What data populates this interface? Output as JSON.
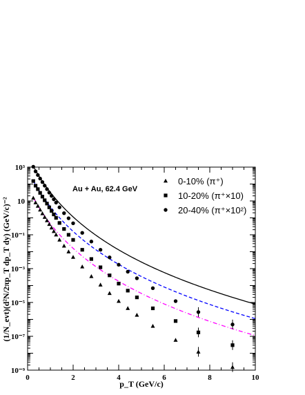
{
  "chart_data": {
    "type": "scatter",
    "annotation": "Au + Au, 62.4 GeV",
    "xlabel": "p_T (GeV/c)",
    "ylabel": "(1/N_evt)(d²N/2πp_T dp_T dy) (GeV/c)⁻²",
    "xlim": [
      0,
      10
    ],
    "ylim": [
      1e-09,
      1000
    ],
    "y_scale": "log",
    "x_ticks": [
      "0",
      "2",
      "4",
      "6",
      "8",
      "10"
    ],
    "y_ticks": [
      "10⁻⁹",
      "10⁻⁷",
      "10⁻⁵",
      "10⁻³",
      "10⁻¹",
      "10",
      "10³"
    ],
    "grid": false,
    "legend_position": "top-right",
    "legend": [
      "0-10% (π⁺)",
      "10-20% (π⁺×10)",
      "20-40% (π⁺×10²)"
    ],
    "series": [
      {
        "name": "0-10% (π⁺)",
        "marker": "triangle",
        "marker_color": "#000000",
        "fit_color": "#ff00ff",
        "fit_style": "dash-dot",
        "x": [
          0.25,
          0.35,
          0.45,
          0.55,
          0.65,
          0.75,
          0.85,
          0.95,
          1.05,
          1.15,
          1.25,
          1.4,
          1.6,
          1.8,
          2.0,
          2.4,
          2.8,
          3.2,
          3.6,
          4.0,
          4.4,
          4.8,
          5.5,
          6.5,
          7.5,
          9.0
        ],
        "y": [
          15,
          8,
          5,
          3,
          1.8,
          1.1,
          0.7,
          0.42,
          0.26,
          0.16,
          0.1,
          0.05,
          0.022,
          0.01,
          0.0048,
          0.0013,
          0.00035,
          0.00011,
          3.5e-05,
          1.2e-05,
          4.5e-06,
          1.8e-06,
          4e-07,
          6e-08,
          1.2e-08,
          1.5e-09
        ],
        "fit": {
          "x0": 0.25,
          "y0": 16,
          "b": 3.15,
          "m": 0.78
        }
      },
      {
        "name": "10-20% (π⁺×10)",
        "marker": "square",
        "marker_color": "#000000",
        "fit_color": "#0000ff",
        "fit_style": "dashed",
        "x": [
          0.25,
          0.35,
          0.45,
          0.55,
          0.65,
          0.75,
          0.85,
          0.95,
          1.05,
          1.15,
          1.25,
          1.4,
          1.6,
          1.8,
          2.0,
          2.4,
          2.8,
          3.2,
          3.6,
          4.0,
          4.4,
          4.8,
          5.5,
          6.5,
          7.5,
          9.0
        ],
        "y": [
          150,
          80,
          50,
          30,
          18,
          11,
          7,
          4.2,
          2.6,
          1.6,
          1,
          0.5,
          0.22,
          0.1,
          0.05,
          0.013,
          0.0037,
          0.0012,
          0.0004,
          0.00013,
          5e-05,
          2e-05,
          4.5e-06,
          8e-07,
          1.7e-07,
          3e-08
        ],
        "fit": {
          "x0": 0.25,
          "y0": 160,
          "b": 3.15,
          "m": 0.78
        }
      },
      {
        "name": "20-40% (π⁺×10²)",
        "marker": "circle",
        "marker_color": "#000000",
        "fit_color": "#000000",
        "fit_style": "solid",
        "x": [
          0.25,
          0.35,
          0.45,
          0.55,
          0.65,
          0.75,
          0.85,
          0.95,
          1.05,
          1.15,
          1.25,
          1.4,
          1.6,
          1.8,
          2.0,
          2.4,
          2.8,
          3.2,
          3.6,
          4.0,
          4.4,
          4.8,
          5.5,
          6.5,
          7.5,
          9.0
        ],
        "y": [
          1050,
          560,
          340,
          210,
          130,
          80,
          50,
          31,
          20,
          12.5,
          8,
          4.2,
          1.9,
          0.95,
          0.48,
          0.13,
          0.04,
          0.013,
          0.0046,
          0.0017,
          0.00066,
          0.00027,
          7e-05,
          1.2e-05,
          2.7e-06,
          5e-07
        ],
        "fit": {
          "x0": 0.25,
          "y0": 1150,
          "b": 3.15,
          "m": 0.78
        }
      }
    ]
  }
}
